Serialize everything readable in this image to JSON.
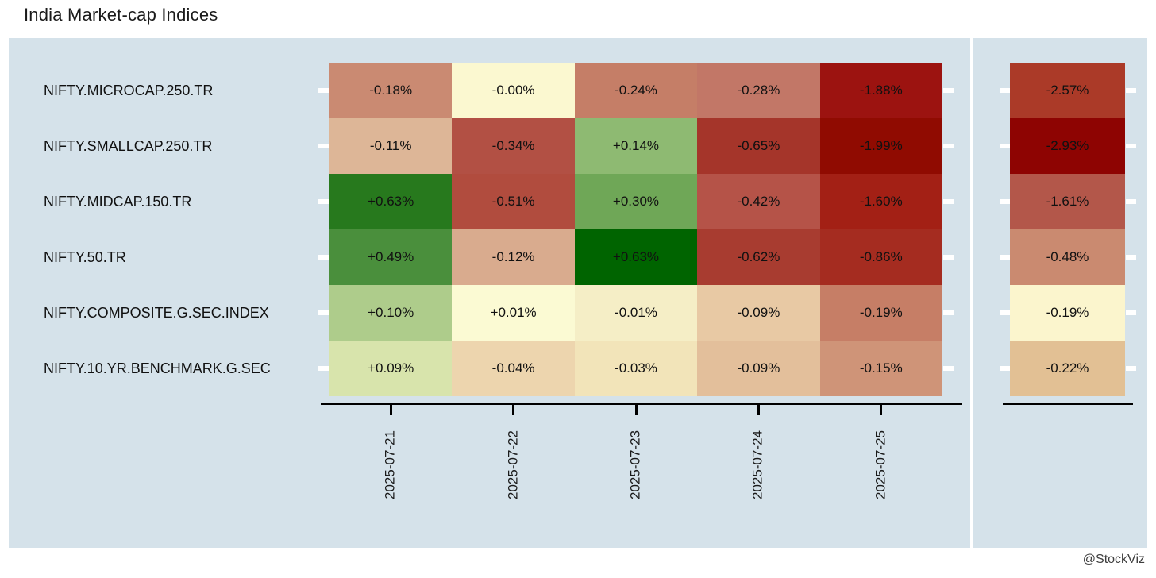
{
  "title": "India Market-cap Indices",
  "credit": "@StockViz",
  "colors": {
    "panel_bg": "#d5e2ea",
    "axis": "#000000",
    "row_tick": "#ffffff",
    "cell_text": "#111111"
  },
  "chart_data": {
    "type": "heatmap",
    "title": "India Market-cap Indices",
    "x_tick_labels": [
      "2025-07-21",
      "2025-07-22",
      "2025-07-23",
      "2025-07-24",
      "2025-07-25"
    ],
    "x_tick_rotation": 90,
    "legend": "none",
    "value_unit": "percent daily return",
    "rows": [
      {
        "label": "NIFTY.MICROCAP.250.TR",
        "daily": [
          "-0.18%",
          "-0.00%",
          "-0.24%",
          "-0.28%",
          "-1.88%"
        ],
        "daily_colors": [
          "#ca8a72",
          "#fbf8d0",
          "#c57e67",
          "#c27767",
          "#9c1310"
        ],
        "weekly": "-2.57%",
        "weekly_color": "#ab3a28"
      },
      {
        "label": "NIFTY.SMALLCAP.250.TR",
        "daily": [
          "-0.11%",
          "-0.34%",
          "+0.14%",
          "-0.65%",
          "-1.99%"
        ],
        "daily_colors": [
          "#ddb697",
          "#b25044",
          "#8eba72",
          "#a5352a",
          "#900b01"
        ],
        "weekly": "-2.93%",
        "weekly_color": "#8e0402"
      },
      {
        "label": "NIFTY.MIDCAP.150.TR",
        "daily": [
          "+0.63%",
          "-0.51%",
          "+0.30%",
          "-0.42%",
          "-1.60%"
        ],
        "daily_colors": [
          "#27791d",
          "#b14c3e",
          "#6fa757",
          "#b55348",
          "#a32015"
        ],
        "weekly": "-1.61%",
        "weekly_color": "#b3574a"
      },
      {
        "label": "NIFTY.50.TR",
        "daily": [
          "+0.49%",
          "-0.12%",
          "+0.63%",
          "-0.62%",
          "-0.86%"
        ],
        "daily_colors": [
          "#4a8f3c",
          "#d9ab8e",
          "#006400",
          "#a83c30",
          "#a52c20"
        ],
        "weekly": "-0.48%",
        "weekly_color": "#ca8a70"
      },
      {
        "label": "NIFTY.COMPOSITE.G.SEC.INDEX",
        "daily": [
          "+0.10%",
          "+0.01%",
          "-0.01%",
          "-0.09%",
          "-0.19%"
        ],
        "daily_colors": [
          "#aecc8b",
          "#fbfad3",
          "#f5eec6",
          "#e8c9a4",
          "#c67e66"
        ],
        "weekly": "-0.19%",
        "weekly_color": "#fbf5cd"
      },
      {
        "label": "NIFTY.10.YR.BENCHMARK.G.SEC",
        "daily": [
          "+0.09%",
          "-0.04%",
          "-0.03%",
          "-0.09%",
          "-0.15%"
        ],
        "daily_colors": [
          "#d8e4ac",
          "#edd5ae",
          "#f2e4b9",
          "#e3bf9b",
          "#cf9478"
        ],
        "weekly": "-0.22%",
        "weekly_color": "#e2c094"
      }
    ]
  }
}
